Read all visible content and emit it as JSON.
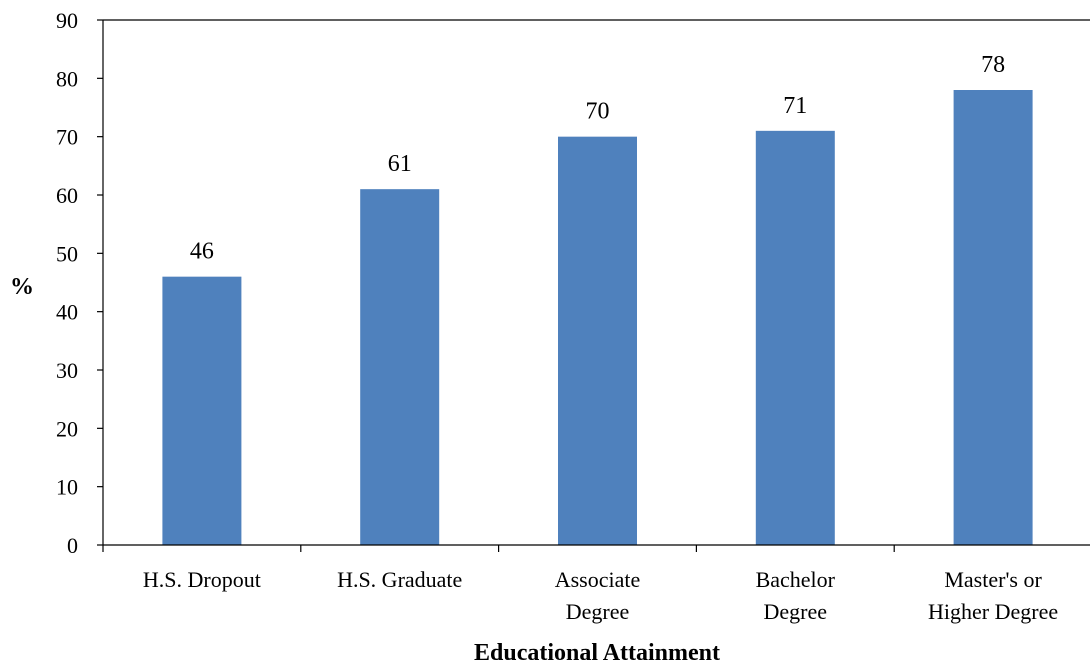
{
  "chart_data": {
    "type": "bar",
    "categories": [
      [
        "H.S. Dropout"
      ],
      [
        "H.S. Graduate"
      ],
      [
        "Associate",
        "Degree"
      ],
      [
        "Bachelor",
        "Degree"
      ],
      [
        "Master's or",
        "Higher Degree"
      ]
    ],
    "values": [
      46,
      61,
      70,
      71,
      78
    ],
    "data_labels": [
      "46",
      "61",
      "70",
      "71",
      "78"
    ],
    "title": "",
    "xlabel": "Educational Attainment",
    "ylabel": "%",
    "ylim": [
      0,
      90
    ],
    "yticks": [
      0,
      10,
      20,
      30,
      40,
      50,
      60,
      70,
      80,
      90
    ],
    "grid": false,
    "legend": "none",
    "bar_color": "#4F81BD"
  }
}
